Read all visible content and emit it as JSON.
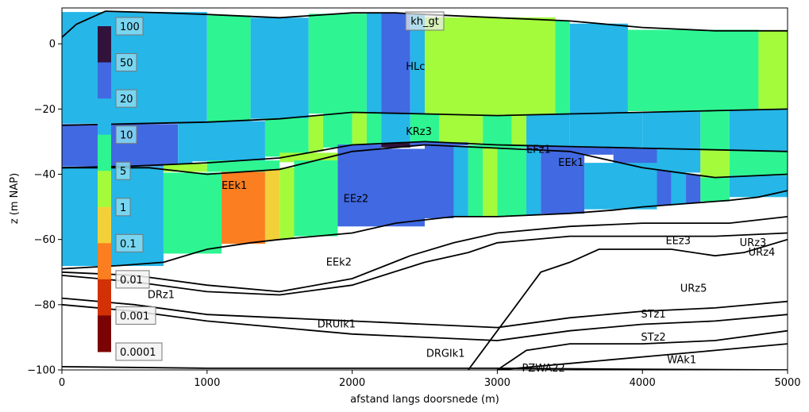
{
  "chart_data": {
    "type": "cross-section",
    "title": "kh_gt",
    "xlabel": "afstand langs doorsnede (m)",
    "ylabel": "z (m NAP)",
    "xlim": [
      0,
      5000
    ],
    "ylim": [
      -100,
      11
    ],
    "x_ticks": [
      0,
      1000,
      2000,
      3000,
      4000,
      5000
    ],
    "y_ticks": [
      -100,
      -80,
      -60,
      -40,
      -20,
      0
    ],
    "colorbar": {
      "labels": [
        "100",
        "50",
        "20",
        "10",
        "5",
        "1",
        "0.1",
        "0.01",
        "0.001",
        "0.0001"
      ],
      "colors": [
        "#30123b",
        "#4169e1",
        "#26b6e8",
        "#2ef592",
        "#a4fb3c",
        "#f2d03a",
        "#fb7e21",
        "#d23105",
        "#7a0403"
      ],
      "highlighted_labels": [
        "100",
        "50",
        "20",
        "10",
        "5",
        "1",
        "0.1"
      ]
    },
    "unit_labels": [
      {
        "text": "HLc",
        "x": 2370,
        "y": -7
      },
      {
        "text": "KRz3",
        "x": 2370,
        "y": -27
      },
      {
        "text": "EFz1",
        "x": 3200,
        "y": -32.5
      },
      {
        "text": "EEk1",
        "x": 3420,
        "y": -36.5
      },
      {
        "text": "EEk1",
        "x": 1100,
        "y": -43.5
      },
      {
        "text": "EEz2",
        "x": 1940,
        "y": -47.5
      },
      {
        "text": "EEz3",
        "x": 4160,
        "y": -60.5
      },
      {
        "text": "URz3",
        "x": 4670,
        "y": -61
      },
      {
        "text": "URz4",
        "x": 4730,
        "y": -64
      },
      {
        "text": "EEk2",
        "x": 1820,
        "y": -67
      },
      {
        "text": "URz5",
        "x": 4260,
        "y": -75
      },
      {
        "text": "DRz1",
        "x": 590,
        "y": -77
      },
      {
        "text": "STz1",
        "x": 3990,
        "y": -83
      },
      {
        "text": "DRUIk1",
        "x": 1760,
        "y": -86
      },
      {
        "text": "STz2",
        "x": 3990,
        "y": -90
      },
      {
        "text": "DRGIk1",
        "x": 2510,
        "y": -95
      },
      {
        "text": "WAk1",
        "x": 4170,
        "y": -97
      },
      {
        "text": "PZWA22",
        "x": 3170,
        "y": -99.5
      }
    ]
  }
}
